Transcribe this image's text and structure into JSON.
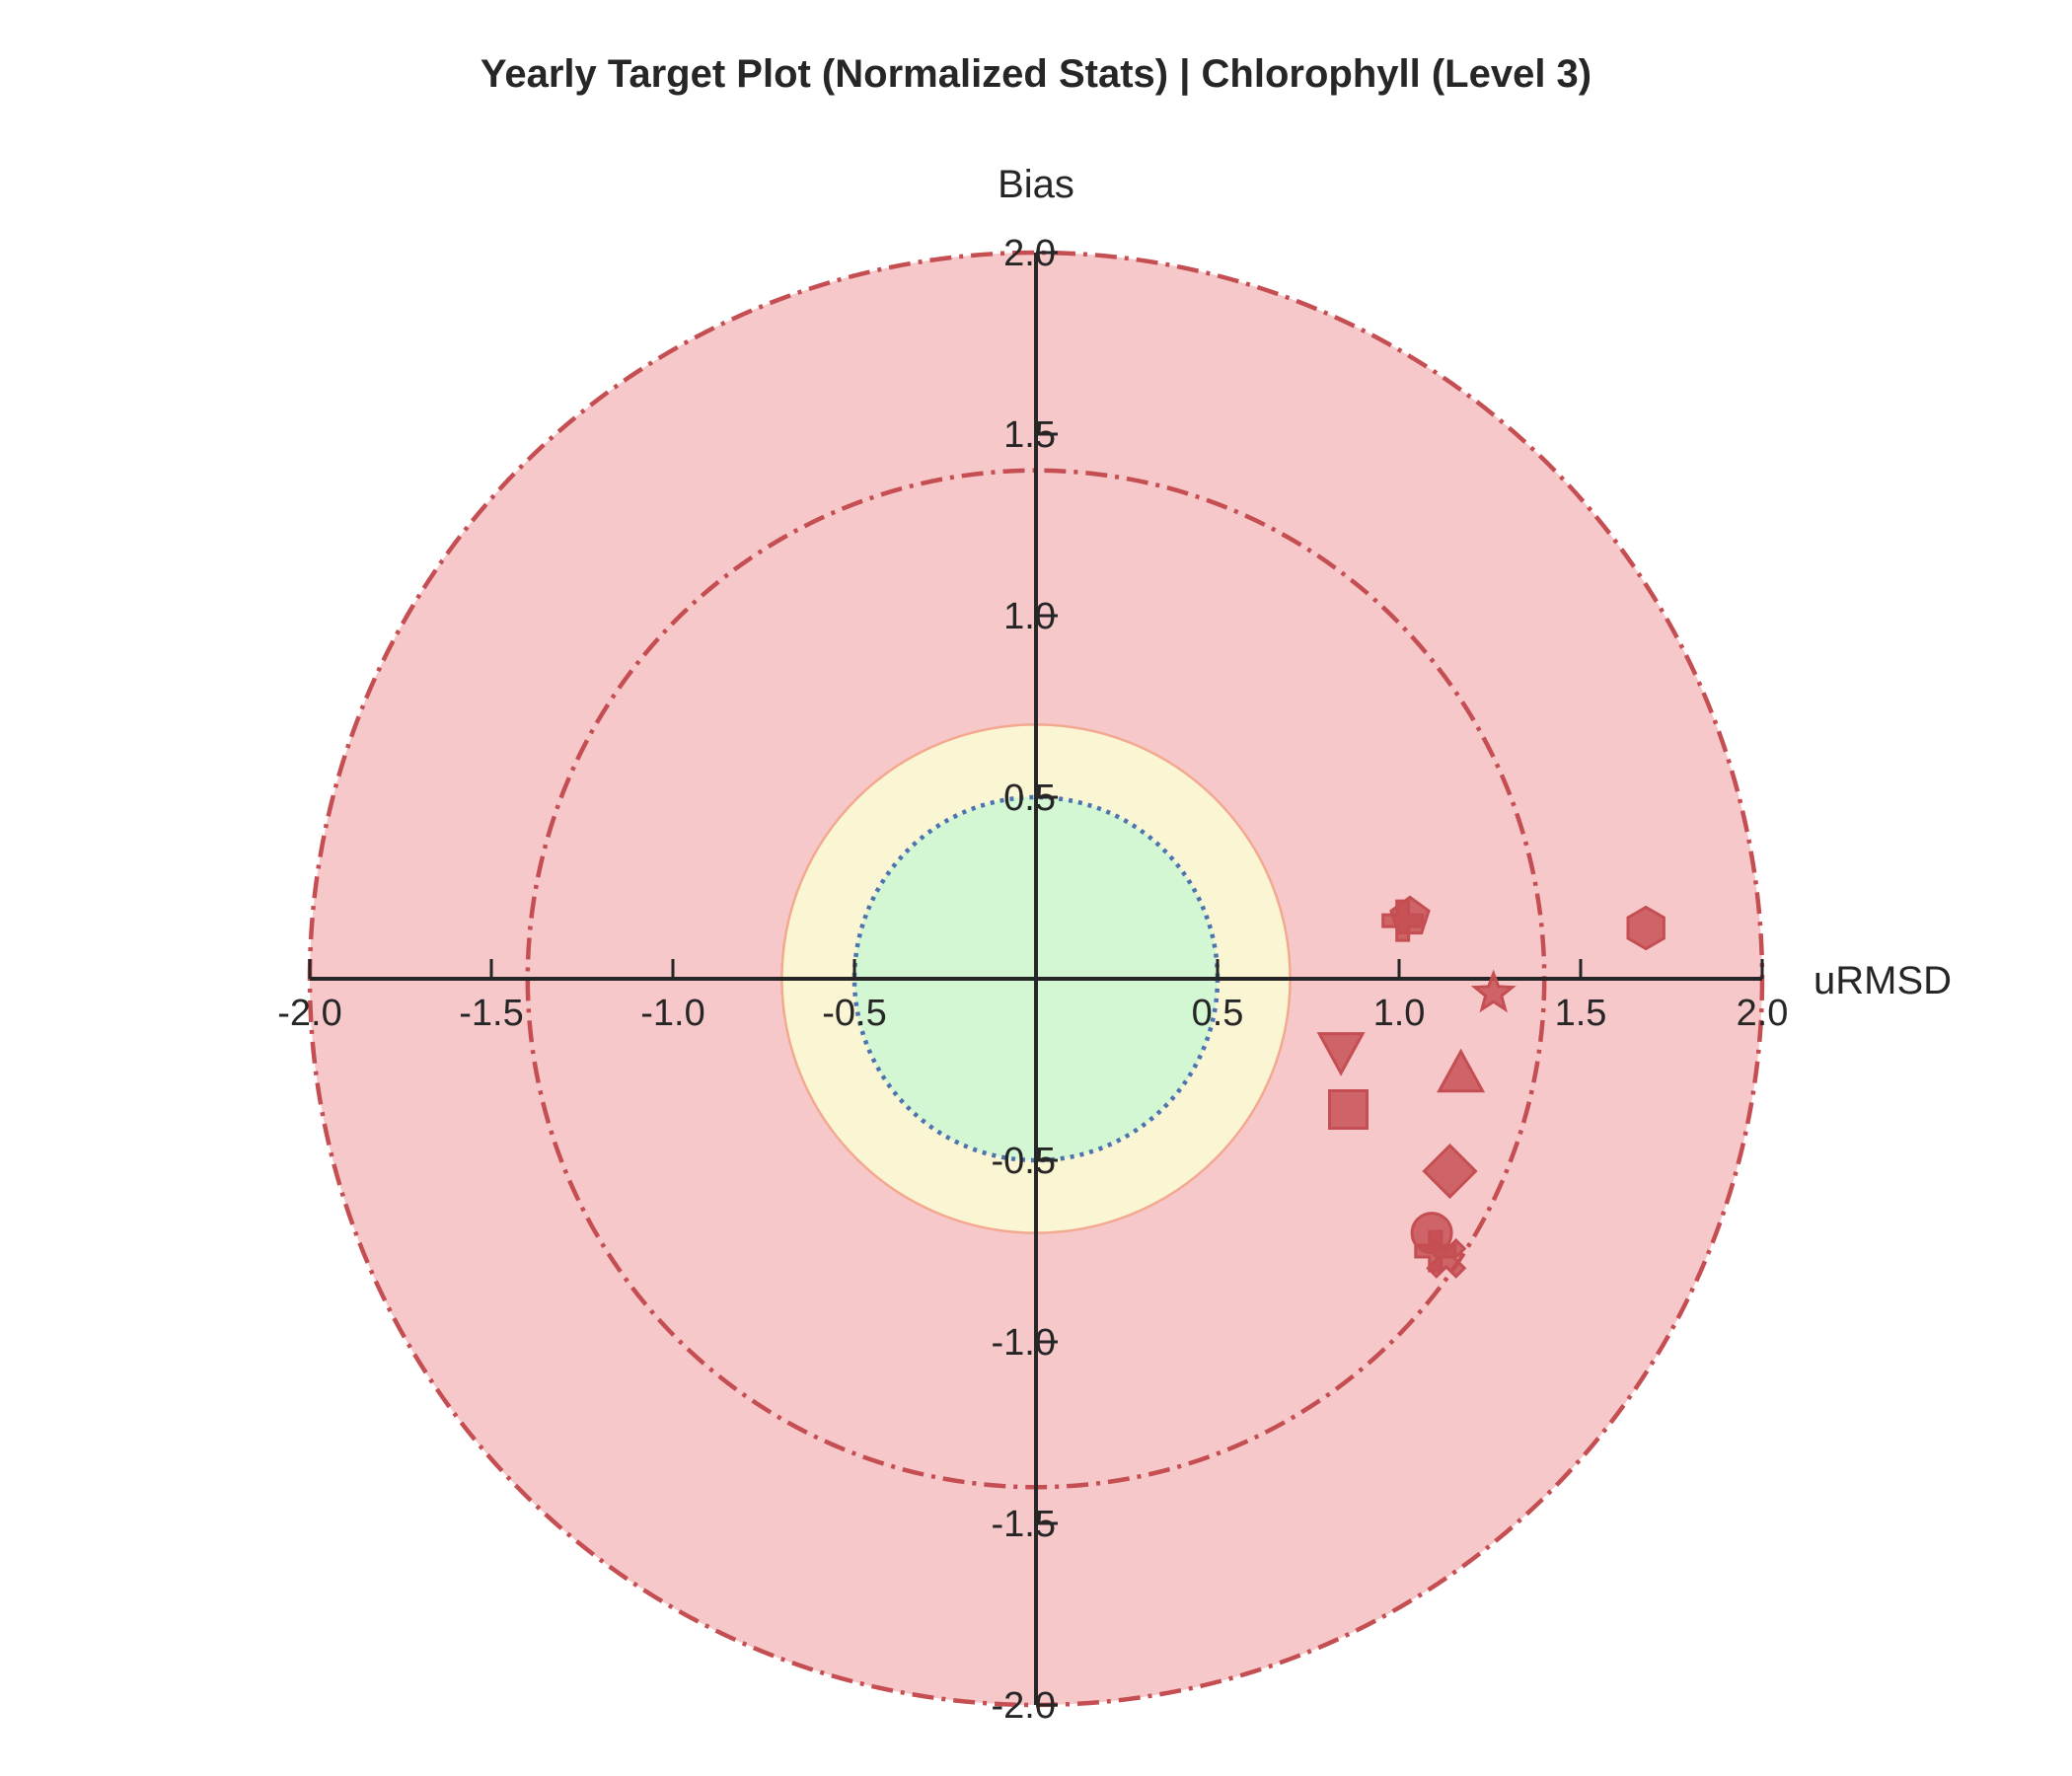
{
  "chart_data": {
    "type": "scatter",
    "title": "Yearly Target Plot (Normalized Stats) | Chlorophyll (Level 3)",
    "xlabel": "uRMSD",
    "ylabel": "Bias",
    "xlim": [
      -2.0,
      2.0
    ],
    "ylim": [
      -2.0,
      2.0
    ],
    "xticks": [
      "-2.0",
      "-1.5",
      "-1.0",
      "-0.5",
      "0.5",
      "1.0",
      "1.5",
      "2.0"
    ],
    "yticks": [
      "2.0",
      "1.5",
      "1.0",
      "0.5",
      "-0.5",
      "-1.0",
      "-1.5",
      "-2.0"
    ],
    "regions": [
      {
        "radius": 2.0,
        "fill": "#f7c8ca",
        "stroke": "#c44e52",
        "style": "dashdot"
      },
      {
        "radius": 1.4,
        "stroke": "#c44e52",
        "style": "dashdot"
      },
      {
        "radius": 0.7,
        "fill": "#faf5d2",
        "stroke": "#f2a98f",
        "style": "solid"
      },
      {
        "radius": 0.5,
        "fill": "#d2f7d2",
        "stroke": "#4c72b0",
        "style": "dotted"
      }
    ],
    "marker_color": "#c44e52",
    "points": [
      {
        "marker": "plus",
        "x": 1.01,
        "y": 0.16
      },
      {
        "marker": "pentagon",
        "x": 1.03,
        "y": 0.17
      },
      {
        "marker": "hexagon",
        "x": 1.68,
        "y": 0.14
      },
      {
        "marker": "star",
        "x": 1.26,
        "y": -0.04
      },
      {
        "marker": "triangle-down",
        "x": 0.84,
        "y": -0.2
      },
      {
        "marker": "triangle-up",
        "x": 1.17,
        "y": -0.26
      },
      {
        "marker": "square",
        "x": 0.86,
        "y": -0.36
      },
      {
        "marker": "diamond",
        "x": 1.14,
        "y": -0.53
      },
      {
        "marker": "circle",
        "x": 1.09,
        "y": -0.7
      },
      {
        "marker": "plus-filled",
        "x": 1.1,
        "y": -0.75
      },
      {
        "marker": "x-filled",
        "x": 1.13,
        "y": -0.77
      }
    ]
  }
}
